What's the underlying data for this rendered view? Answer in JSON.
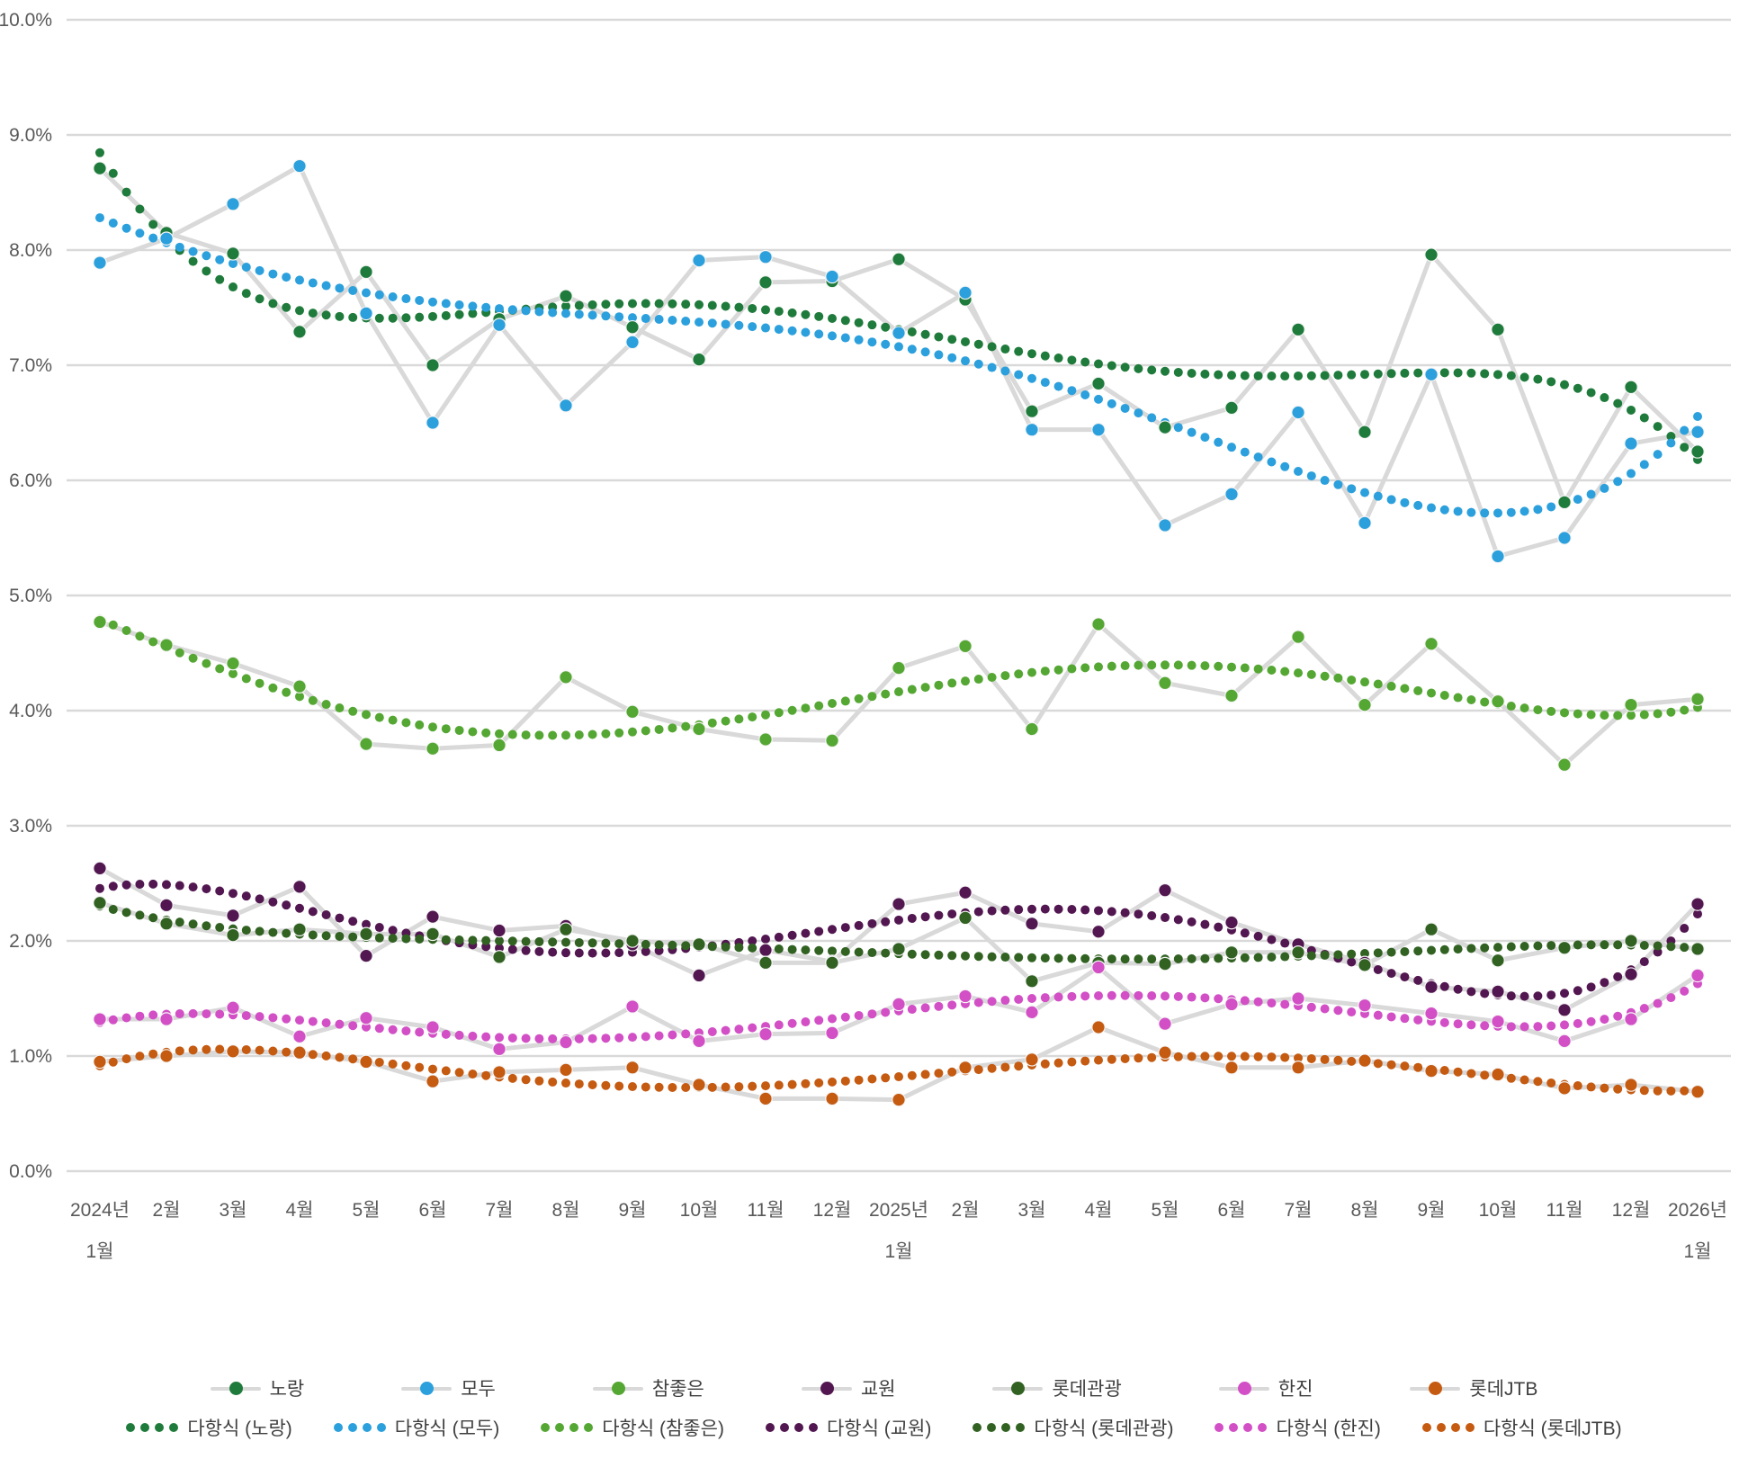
{
  "chart_data": {
    "type": "line",
    "title": "",
    "unit": "percent",
    "grid": true,
    "legend_position": "bottom",
    "axis_text_color": "#595959",
    "grid_color": "#d9d9d9",
    "connector_line_color": "#d9d9d9",
    "y_axis": {
      "min": 0,
      "max": 10,
      "step": 1,
      "tick_labels": [
        "10.0%",
        "9.0%",
        "8.0%",
        "7.0%",
        "6.0%",
        "5.0%",
        "4.0%",
        "3.0%",
        "2.0%",
        "1.0%",
        "0.0%"
      ]
    },
    "x_categories": [
      "2024년 1월",
      "2월",
      "3월",
      "4월",
      "5월",
      "6월",
      "7월",
      "8월",
      "9월",
      "10월",
      "11월",
      "12월",
      "2025년 1월",
      "2월",
      "3월",
      "4월",
      "5월",
      "6월",
      "7월",
      "8월",
      "9월",
      "10월",
      "11월",
      "12월",
      "2026년 1월"
    ],
    "x_label_lines": [
      [
        "2024년",
        "1월"
      ],
      [
        "2월"
      ],
      [
        "3월"
      ],
      [
        "4월"
      ],
      [
        "5월"
      ],
      [
        "6월"
      ],
      [
        "7월"
      ],
      [
        "8월"
      ],
      [
        "9월"
      ],
      [
        "10월"
      ],
      [
        "11월"
      ],
      [
        "12월"
      ],
      [
        "2025년",
        "1월"
      ],
      [
        "2월"
      ],
      [
        "3월"
      ],
      [
        "4월"
      ],
      [
        "5월"
      ],
      [
        "6월"
      ],
      [
        "7월"
      ],
      [
        "8월"
      ],
      [
        "9월"
      ],
      [
        "10월"
      ],
      [
        "11월"
      ],
      [
        "12월"
      ],
      [
        "2026년",
        "1월"
      ]
    ],
    "series": [
      {
        "name": "노랑",
        "color": "#1f7b3b",
        "values": [
          8.71,
          8.15,
          7.97,
          7.29,
          7.81,
          7.0,
          7.4,
          7.6,
          7.33,
          7.05,
          7.72,
          7.73,
          7.92,
          7.57,
          6.6,
          6.84,
          6.46,
          6.63,
          7.31,
          6.42,
          7.96,
          7.31,
          5.81,
          6.81,
          6.25
        ]
      },
      {
        "name": "모두",
        "color": "#2ba0dc",
        "values": [
          7.89,
          8.1,
          8.4,
          8.73,
          7.45,
          6.5,
          7.35,
          6.65,
          7.2,
          7.91,
          7.94,
          7.77,
          7.28,
          7.63,
          6.44,
          6.44,
          5.61,
          5.88,
          6.59,
          5.63,
          6.92,
          5.34,
          5.5,
          6.32,
          6.42
        ]
      },
      {
        "name": "참좋은",
        "color": "#55a733",
        "values": [
          4.77,
          4.57,
          4.41,
          4.21,
          3.71,
          3.67,
          3.7,
          4.29,
          3.99,
          3.84,
          3.75,
          3.74,
          4.37,
          4.56,
          3.84,
          4.75,
          4.24,
          4.13,
          4.64,
          4.05,
          4.58,
          4.08,
          3.53,
          4.05,
          4.1
        ]
      },
      {
        "name": "교원",
        "color": "#521750",
        "values": [
          2.63,
          2.31,
          2.22,
          2.47,
          1.87,
          2.21,
          2.09,
          2.13,
          1.97,
          1.7,
          1.92,
          1.82,
          2.32,
          2.42,
          2.15,
          2.08,
          2.44,
          2.16,
          1.97,
          1.81,
          1.6,
          1.56,
          1.4,
          1.71,
          2.32
        ]
      },
      {
        "name": "롯데관광",
        "color": "#316222",
        "values": [
          2.33,
          2.15,
          2.05,
          2.1,
          2.06,
          2.06,
          1.86,
          2.1,
          2.0,
          1.97,
          1.81,
          1.81,
          1.93,
          2.2,
          1.65,
          1.81,
          1.8,
          1.9,
          1.9,
          1.79,
          2.1,
          1.83,
          1.94,
          2.0,
          1.93
        ]
      },
      {
        "name": "한진",
        "color": "#d24fc6",
        "values": [
          1.32,
          1.32,
          1.42,
          1.17,
          1.33,
          1.25,
          1.06,
          1.12,
          1.43,
          1.13,
          1.19,
          1.2,
          1.45,
          1.52,
          1.38,
          1.77,
          1.28,
          1.45,
          1.5,
          1.44,
          1.37,
          1.3,
          1.13,
          1.32,
          1.7
        ]
      },
      {
        "name": "롯데JTB",
        "color": "#c55a11",
        "values": [
          0.95,
          1.0,
          1.04,
          1.03,
          0.95,
          0.78,
          0.86,
          0.88,
          0.9,
          0.75,
          0.63,
          0.63,
          0.62,
          0.9,
          0.97,
          1.25,
          1.03,
          0.9,
          0.9,
          0.96,
          0.87,
          0.84,
          0.72,
          0.75,
          0.69
        ]
      }
    ],
    "trendlines": {
      "label_prefix": "다항식",
      "degree": 5,
      "labels": [
        "다항식 (노랑)",
        "다항식 (모두)",
        "다항식 (참좋은)",
        "다항식 (교원)",
        "다항식 (롯데관광)",
        "다항식 (한진)",
        "다항식 (롯데JTB)"
      ]
    },
    "legend": {
      "row1": [
        "노랑",
        "모두",
        "참좋은",
        "교원",
        "롯데관광",
        "한진",
        "롯데JTB"
      ],
      "row2": [
        "다항식 (노랑)",
        "다항식 (모두)",
        "다항식 (참좋은)",
        "다항식 (교원)",
        "다항식 (롯데관광)",
        "다항식 (한진)",
        "다항식 (롯데JTB)"
      ]
    }
  }
}
